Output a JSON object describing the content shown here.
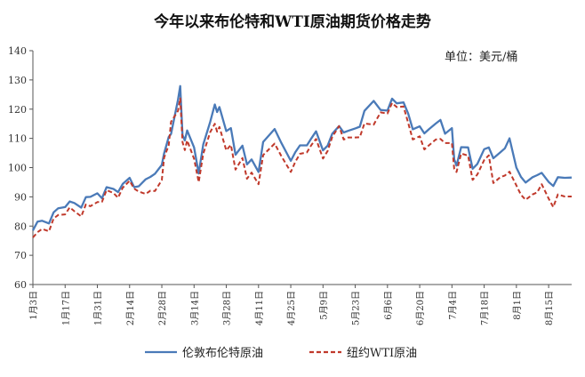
{
  "chart_data": {
    "type": "line",
    "title": "今年以来布伦特和WTI原油期货价格走势",
    "unit_label": "单位：美元/桶",
    "ylim": [
      60,
      140
    ],
    "yticks": [
      60,
      70,
      80,
      90,
      100,
      110,
      120,
      130,
      140
    ],
    "xlim": [
      "1月3日",
      "8月25日"
    ],
    "xticks": [
      "1月3日",
      "1月17日",
      "1月31日",
      "2月14日",
      "2月28日",
      "3月14日",
      "3月28日",
      "4月11日",
      "4月25日",
      "5月9日",
      "5月23日",
      "6月6日",
      "6月20日",
      "7月4日",
      "7月18日",
      "8月1日",
      "8月15日"
    ],
    "grid": false,
    "legend_position": "bottom",
    "series": [
      {
        "name": "伦敦布伦特原油",
        "color": "#4a7ab8",
        "style": "solid",
        "x": [
          "1月3日",
          "1月5日",
          "1月7日",
          "1月10日",
          "1月12日",
          "1月14日",
          "1月17日",
          "1月19日",
          "1月21日",
          "1月24日",
          "1月26日",
          "1月28日",
          "1月31日",
          "2月2日",
          "2月4日",
          "2月7日",
          "2月9日",
          "2月11日",
          "2月14日",
          "2月16日",
          "2月18日",
          "2月21日",
          "2月23日",
          "2月25日",
          "2月28日",
          "3月1日",
          "3月3日",
          "3月4日",
          "3月7日",
          "3月8日",
          "3月9日",
          "3月10日",
          "3月11日",
          "3月14日",
          "3月16日",
          "3月18日",
          "3月21日",
          "3月23日",
          "3月24日",
          "3月25日",
          "3月28日",
          "3月30日",
          "4月1日",
          "4月4日",
          "4月6日",
          "4月8日",
          "4月11日",
          "4月13日",
          "4月18日",
          "4月21日",
          "4月25日",
          "4月27日",
          "4月29日",
          "5月2日",
          "5月4日",
          "5月6日",
          "5月9日",
          "5月11日",
          "5月13日",
          "5月16日",
          "5月18日",
          "5月20日",
          "5月23日",
          "5月25日",
          "5月27日",
          "5月31日",
          "6月3日",
          "6月6日",
          "6月8日",
          "6月10日",
          "6月13日",
          "6月15日",
          "6月17日",
          "6月20日",
          "6月22日",
          "6月24日",
          "6月27日",
          "6月29日",
          "7月1日",
          "7月4日",
          "7月5日",
          "7月6日",
          "7月8日",
          "7月11日",
          "7月13日",
          "7月15日",
          "7月18日",
          "7月20日",
          "7月22日",
          "7月25日",
          "7月27日",
          "7月29日",
          "8月1日",
          "8月3日",
          "8月5日",
          "8月8日",
          "8月10日",
          "8月12日",
          "8月15日",
          "8月17日",
          "8月19日",
          "8月22日",
          "8月25日"
        ],
        "values": [
          78.5,
          81.5,
          81.8,
          80.9,
          84.7,
          86.1,
          86.5,
          88.4,
          87.9,
          86.3,
          89.9,
          90.0,
          91.2,
          89.5,
          93.3,
          92.7,
          91.6,
          94.4,
          96.5,
          93.3,
          93.6,
          96.0,
          96.8,
          97.9,
          100.9,
          104.9,
          110.5,
          111.5,
          123.2,
          127.9,
          111.1,
          109.3,
          112.7,
          106.9,
          98.0,
          107.9,
          115.6,
          121.6,
          119.0,
          120.7,
          112.5,
          113.5,
          104.4,
          107.5,
          101.1,
          102.8,
          98.5,
          108.8,
          113.2,
          108.3,
          102.3,
          105.3,
          107.6,
          107.6,
          110.1,
          112.4,
          105.9,
          107.5,
          111.6,
          114.2,
          112.0,
          112.6,
          113.4,
          114.0,
          119.4,
          122.8,
          119.7,
          119.5,
          123.6,
          122.0,
          122.3,
          118.5,
          113.1,
          114.1,
          111.7,
          113.1,
          115.1,
          116.3,
          111.6,
          113.5,
          102.8,
          100.7,
          107.0,
          106.9,
          99.6,
          101.2,
          106.3,
          106.9,
          103.2,
          105.2,
          106.6,
          110.0,
          100.0,
          96.8,
          94.9,
          96.7,
          97.4,
          98.2,
          95.1,
          93.7,
          96.7,
          96.5,
          96.6
        ]
      },
      {
        "name": "纽约WTI原油",
        "color": "#c0392b",
        "style": "dashed",
        "x": [
          "1月3日",
          "1月5日",
          "1月7日",
          "1月10日",
          "1月12日",
          "1月14日",
          "1月17日",
          "1月19日",
          "1月21日",
          "1月24日",
          "1月26日",
          "1月28日",
          "1月31日",
          "2月2日",
          "2月4日",
          "2月7日",
          "2月9日",
          "2月11日",
          "2月14日",
          "2月16日",
          "2月18日",
          "2月21日",
          "2月23日",
          "2月25日",
          "2月28日",
          "3月1日",
          "3月3日",
          "3月4日",
          "3月7日",
          "3月8日",
          "3月9日",
          "3月10日",
          "3月11日",
          "3月14日",
          "3月16日",
          "3月18日",
          "3月21日",
          "3月23日",
          "3月24日",
          "3月25日",
          "3月28日",
          "3月30日",
          "4月1日",
          "4月4日",
          "4月6日",
          "4月8日",
          "4月11日",
          "4月13日",
          "4月18日",
          "4月21日",
          "4月25日",
          "4月27日",
          "4月29日",
          "5月2日",
          "5月4日",
          "5月6日",
          "5月9日",
          "5月11日",
          "5月13日",
          "5月16日",
          "5月18日",
          "5月20日",
          "5月23日",
          "5月25日",
          "5月27日",
          "5月31日",
          "6月3日",
          "6月6日",
          "6月8日",
          "6月10日",
          "6月13日",
          "6月15日",
          "6月17日",
          "6月20日",
          "6月22日",
          "6月24日",
          "6月27日",
          "6月29日",
          "7月1日",
          "7月4日",
          "7月5日",
          "7月6日",
          "7月8日",
          "7月11日",
          "7月13日",
          "7月15日",
          "7月18日",
          "7月20日",
          "7月22日",
          "7月25日",
          "7月27日",
          "7月29日",
          "8月1日",
          "8月3日",
          "8月5日",
          "8月8日",
          "8月10日",
          "8月12日",
          "8月15日",
          "8月17日",
          "8月19日",
          "8月22日",
          "8月25日"
        ],
        "values": [
          76.1,
          77.9,
          79.0,
          78.2,
          82.6,
          83.8,
          84.0,
          86.4,
          85.1,
          83.3,
          87.4,
          86.8,
          88.2,
          88.3,
          92.3,
          91.3,
          89.7,
          93.1,
          95.5,
          92.8,
          91.8,
          91.0,
          92.1,
          92.0,
          95.7,
          103.4,
          107.7,
          115.7,
          119.4,
          123.7,
          108.7,
          106.0,
          109.3,
          103.0,
          95.0,
          104.7,
          112.1,
          115.0,
          112.3,
          113.9,
          105.9,
          107.8,
          99.3,
          103.3,
          96.2,
          98.3,
          94.3,
          104.3,
          108.2,
          103.8,
          98.5,
          102.0,
          104.7,
          105.2,
          107.8,
          109.8,
          103.1,
          105.7,
          110.5,
          114.2,
          109.6,
          110.3,
          110.3,
          110.4,
          115.1,
          114.7,
          118.9,
          118.5,
          122.1,
          120.7,
          120.9,
          115.3,
          109.6,
          110.7,
          106.2,
          107.6,
          109.6,
          109.8,
          108.4,
          108.4,
          99.5,
          98.5,
          104.8,
          104.1,
          95.8,
          97.6,
          102.6,
          104.2,
          94.7,
          96.7,
          97.3,
          98.6,
          93.9,
          90.7,
          89.0,
          90.8,
          91.5,
          94.3,
          89.4,
          86.5,
          90.8,
          90.1,
          90.1
        ]
      }
    ]
  }
}
